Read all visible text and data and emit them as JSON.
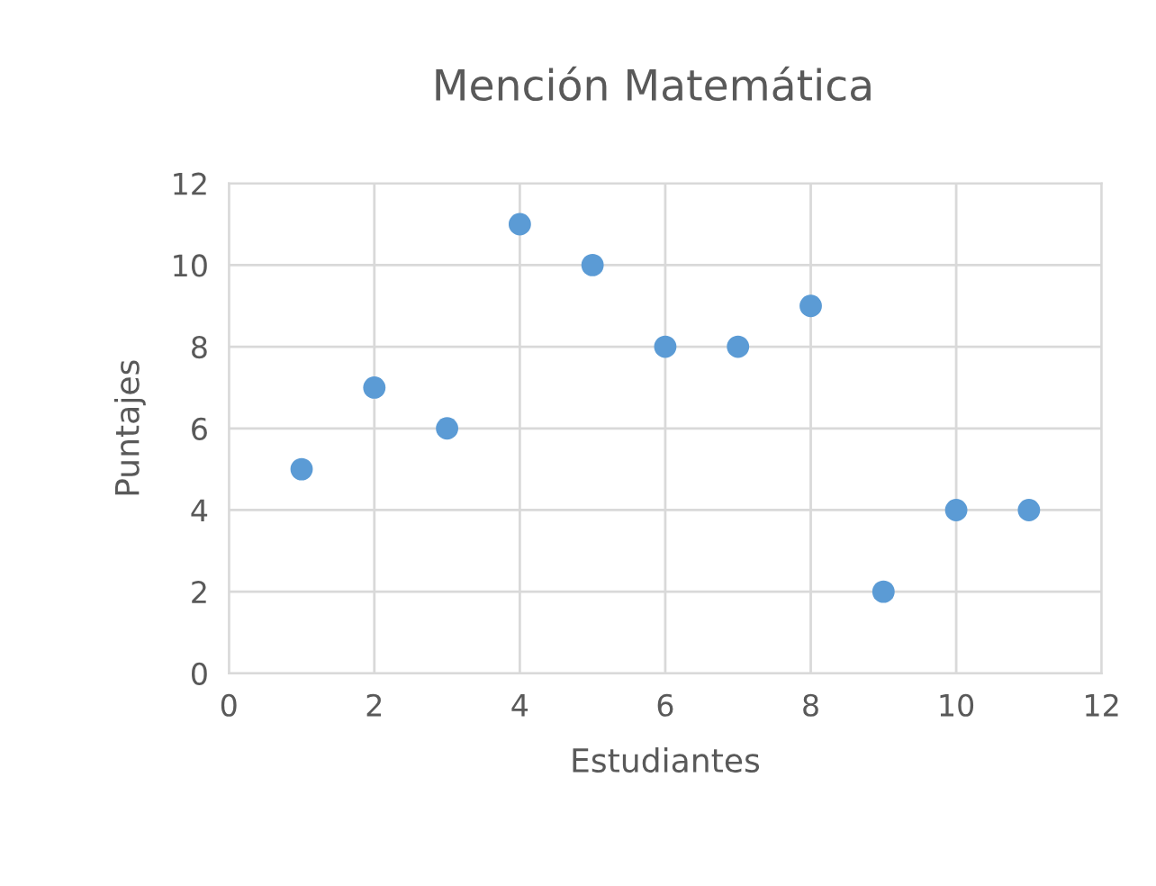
{
  "chart_data": {
    "type": "scatter",
    "title": "Mención Matemática",
    "xlabel": "Estudiantes",
    "ylabel": "Puntajes",
    "x": [
      1,
      2,
      3,
      4,
      5,
      6,
      7,
      8,
      9,
      10,
      11
    ],
    "series": [
      {
        "color": "#5b9bd5",
        "values": [
          5,
          7,
          6,
          11,
          10,
          8,
          8,
          9,
          2,
          4,
          4
        ]
      }
    ],
    "xlim": [
      0,
      12
    ],
    "xticks": [
      0,
      2,
      4,
      6,
      8,
      10,
      12
    ],
    "ylim": [
      0,
      12
    ],
    "yticks": [
      0,
      2,
      4,
      6,
      8,
      10,
      12
    ],
    "grid": true,
    "marker": "circle"
  }
}
